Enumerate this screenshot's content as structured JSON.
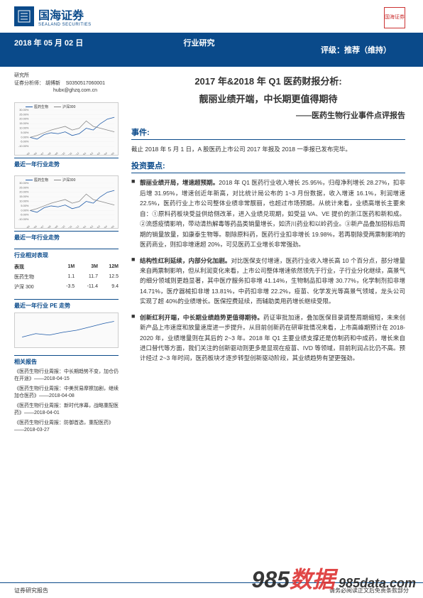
{
  "header": {
    "company_cn": "国海证券",
    "company_en": "SEALAND SECURITIES",
    "seal_text": "国海证券"
  },
  "banner": {
    "date": "2018 年 05 月 02 日",
    "center": "行业研究",
    "right": "评级：推荐（维持）"
  },
  "analyst": {
    "dept": "研究所",
    "label": "证券分析师：",
    "name": "胡博新",
    "code": "S0350517060001",
    "email": "hubx@ghzq.com.cn"
  },
  "titles": {
    "t1": "2017 年&2018 年 Q1 医药财报分析:",
    "t2": "靓丽业绩开端，中长期更值得期待",
    "sub": "——医药生物行业事件点评报告"
  },
  "event": {
    "head": "事件:",
    "body": "截止 2018 年 5 月 1 日，A 股医药上市公司 2017 年报及 2018 一季报已发布完毕。"
  },
  "points": {
    "head": "投资要点:",
    "items": [
      {
        "lead": "靓丽业绩开局，增速超预期。",
        "body": "2018 年 Q1 医药行业收入增长 25.95%，归母净利增长 28.27%，扣非后增 31.95%，增速创近年新高，对比统计局公布的 1~3 月份数据，收入增速 16.1%，利润增速 22.5%，医药行业上市公司整体业绩非常靓丽，也超过市场预期。从统计来看，业绩高增长主要来自：①原料药板块受益供给侧改革，进入业绩兑现期，如受益 VA、VE 提价的浙江医药和新和成。②流感疫情影响，带动清热解毒等药品类销量增长，如济川药业和以岭药业。③新产品叠加招标后周期的销量放量，如康泰生物等。剔除原料药，医药行业扣非增长 19.98%，若再剔除受两票制影响的医药商业，则扣非增速超 20%，可见医药工业增长非常强劲。"
      },
      {
        "lead": "结构性红利延续，内部分化加剧。",
        "body": "对比医保支付增速，医药行业收入增长高 10 个百分点，部分增量来自两票制影响，但从利润变化来看，上市公司整体增速依然领先于行业，子行业分化继续，高景气的细分领域则更趋显著，其中医疗服务扣非增 41.14%，生物制品扣非增 30.77%，化学制剂扣非增 14.71%，医疗器械扣非增 13.81%，中药扣非增 22.2%，疫苗、化学发光等高景气领域，龙头公司实现了超 40%的业绩增长。医保控费延续，而辅助类用药增长继续受限。"
      },
      {
        "lead": "创新红利开端，中长期业绩趋势更值得期待。",
        "body": "药证审批加速，叠加医保目录调整周期缩短，未来创新产品上市速度和放量速度进一步提升。从目前创新药在研审批情况来看，上市高峰期预计在 2018-2020 年，业绩增量则在其后的 2~3 年。2018 年 Q1 主要业绩支撑还是仿制药和中成药，增长来自进口替代等方面，我们关注的创新驱动则更多是显现在疫苗、IVD 等领域，目前利润占比仍不高。预计经过 2~3 年时间，医药板块才逐步转型创新驱动阶段，其业绩趋势有望更强劲。"
      }
    ]
  },
  "left": {
    "chart1_title": "最近一年行业走势",
    "chart1": {
      "legend": [
        {
          "label": "医药生物",
          "color": "#1e5aa8"
        },
        {
          "label": "沪深300",
          "color": "#888888"
        }
      ],
      "ylabels": [
        "30.00%",
        "25.00%",
        "20.00%",
        "15.00%",
        "10.00%",
        "5.00%",
        "0.00%",
        "-5.00%",
        "-10.00%"
      ],
      "xlabels": [
        "17/05",
        "17/06",
        "17/07",
        "17/08",
        "17/09",
        "17/10",
        "17/11",
        "17/12",
        "18/01",
        "18/02",
        "18/03",
        "18/04",
        "18/05"
      ],
      "series1": [
        0,
        -2,
        3,
        5,
        4,
        6,
        2,
        4,
        10,
        8,
        15,
        20,
        22
      ],
      "series2": [
        0,
        2,
        5,
        8,
        10,
        12,
        8,
        10,
        18,
        12,
        10,
        8,
        6
      ],
      "ymin": -10,
      "ymax": 30
    },
    "chart2_title": "最近一年行业走势",
    "perf_title": "行业相对表现",
    "perf": {
      "headers": [
        "表现",
        "1M",
        "3M",
        "12M"
      ],
      "rows": [
        [
          "医药生物",
          "1.1",
          "11.7",
          "12.5"
        ],
        [
          "沪深 300",
          "-3.5",
          "-11.4",
          "9.4"
        ]
      ]
    },
    "pe_title": "最近一年行业 PE 走势",
    "reports_title": "相关报告",
    "reports": [
      "《医药生物行业周报：中长期趋势不变，加仓仍在开途》——2018-04-15",
      "《医药生物行业周报：中美贸易摩擦加剧，继续加仓医药》——2018-04-08",
      "《医药生物行业周报：新时代序幕，战略重配医药》——2018-04-01",
      "《医药生物行业周报：防御首选，重配医药》——2018-03-27"
    ]
  },
  "footer": {
    "left": "证券研究报告",
    "right": "请务必阅读正文后免责条款部分"
  },
  "watermark": {
    "p1": "985",
    "p2": "数据",
    "p3": "  985data.com"
  }
}
